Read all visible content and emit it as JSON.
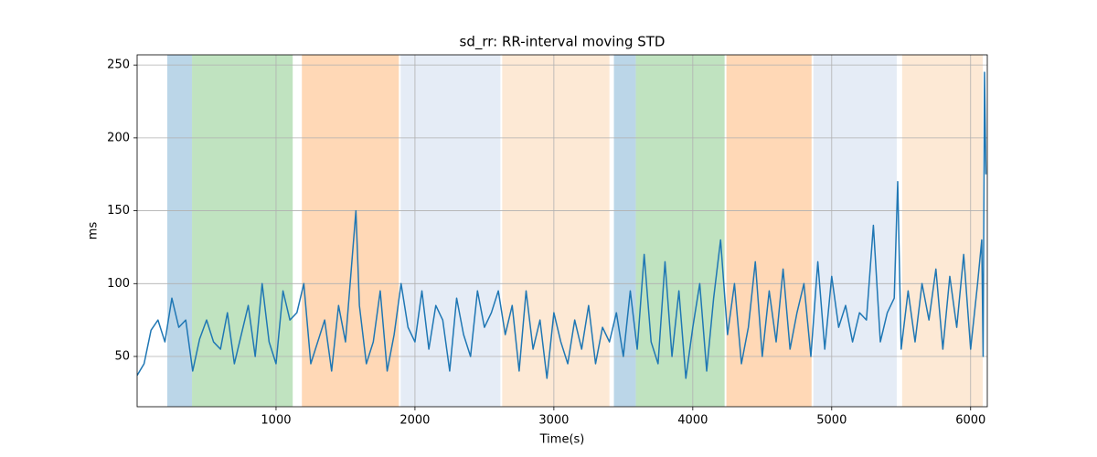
{
  "chart_data": {
    "type": "line",
    "title": "sd_rr: RR-interval moving STD",
    "x_label": "Time(s)",
    "y_label": "ms",
    "color": "#1f77b4",
    "grid": true,
    "xlim": [
      0,
      6120
    ],
    "ylim": [
      15.5,
      257
    ],
    "xticks": [
      1000,
      2000,
      3000,
      4000,
      5000,
      6000
    ],
    "yticks": [
      50,
      100,
      150,
      200,
      250
    ],
    "spans": [
      {
        "start": 217,
        "end": 395,
        "color": "#bbd6e8"
      },
      {
        "start": 395,
        "end": 1120,
        "color": "#c0e3c0"
      },
      {
        "start": 1186,
        "end": 1884,
        "color": "#ffd8b6"
      },
      {
        "start": 1897,
        "end": 2615,
        "color": "#e5ecf6"
      },
      {
        "start": 2628,
        "end": 3400,
        "color": "#fde9d5"
      },
      {
        "start": 3432,
        "end": 3590,
        "color": "#bbd6e8"
      },
      {
        "start": 3590,
        "end": 4229,
        "color": "#c0e3c0"
      },
      {
        "start": 4242,
        "end": 4855,
        "color": "#ffd8b6"
      },
      {
        "start": 4868,
        "end": 5468,
        "color": "#e5ecf6"
      },
      {
        "start": 5507,
        "end": 6087,
        "color": "#fde9d5"
      }
    ],
    "x": [
      0,
      50,
      100,
      150,
      200,
      250,
      300,
      350,
      400,
      450,
      500,
      550,
      600,
      650,
      700,
      750,
      800,
      850,
      900,
      950,
      1000,
      1050,
      1100,
      1150,
      1200,
      1250,
      1300,
      1350,
      1400,
      1450,
      1500,
      1550,
      1575,
      1600,
      1650,
      1700,
      1750,
      1800,
      1850,
      1900,
      1950,
      2000,
      2050,
      2100,
      2150,
      2200,
      2250,
      2300,
      2350,
      2400,
      2450,
      2500,
      2550,
      2600,
      2650,
      2700,
      2750,
      2800,
      2850,
      2900,
      2950,
      3000,
      3050,
      3100,
      3150,
      3200,
      3250,
      3300,
      3350,
      3400,
      3450,
      3500,
      3550,
      3600,
      3650,
      3700,
      3750,
      3800,
      3850,
      3900,
      3950,
      4000,
      4050,
      4100,
      4150,
      4200,
      4250,
      4300,
      4350,
      4400,
      4450,
      4500,
      4550,
      4600,
      4650,
      4700,
      4750,
      4800,
      4850,
      4900,
      4950,
      5000,
      5050,
      5100,
      5150,
      5200,
      5250,
      5300,
      5350,
      5400,
      5450,
      5475,
      5500,
      5550,
      5600,
      5650,
      5700,
      5750,
      5800,
      5850,
      5900,
      5950,
      6000,
      6050,
      6080,
      6090,
      6100,
      6110
    ],
    "values": [
      37,
      45,
      68,
      75,
      60,
      90,
      70,
      75,
      40,
      62,
      75,
      60,
      55,
      80,
      45,
      65,
      85,
      50,
      100,
      60,
      45,
      95,
      75,
      80,
      100,
      45,
      60,
      75,
      40,
      85,
      60,
      120,
      150,
      85,
      45,
      60,
      95,
      40,
      65,
      100,
      70,
      60,
      95,
      55,
      85,
      75,
      40,
      90,
      65,
      50,
      95,
      70,
      80,
      95,
      65,
      85,
      40,
      95,
      55,
      75,
      35,
      80,
      60,
      45,
      75,
      55,
      85,
      45,
      70,
      60,
      80,
      50,
      95,
      55,
      120,
      60,
      45,
      115,
      50,
      95,
      35,
      70,
      100,
      40,
      90,
      130,
      65,
      100,
      45,
      70,
      115,
      50,
      95,
      60,
      110,
      55,
      80,
      100,
      50,
      115,
      55,
      105,
      70,
      85,
      60,
      80,
      75,
      140,
      60,
      80,
      90,
      170,
      55,
      95,
      60,
      100,
      75,
      110,
      55,
      105,
      70,
      120,
      55,
      100,
      130,
      50,
      245,
      175
    ]
  }
}
